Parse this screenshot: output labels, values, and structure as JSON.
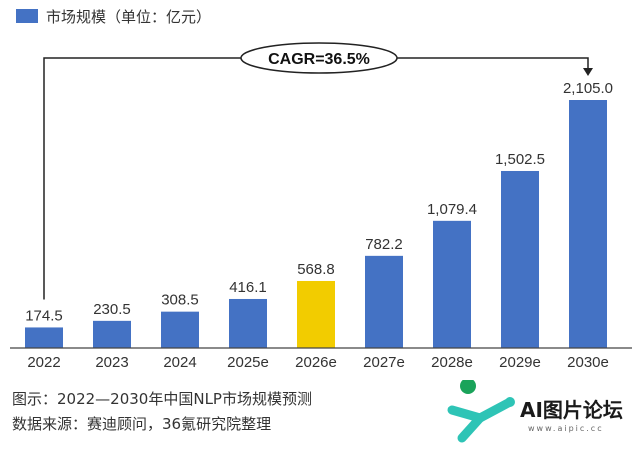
{
  "legend_label": "市场规模（单位：亿元）",
  "cagr_label": "CAGR=36.5%",
  "footnotes": {
    "figure": "图示：2022—2030年中国NLP市场规模预测",
    "source": "数据来源：赛迪顾问，36氪研究院整理"
  },
  "watermark": {
    "text": "AI图片论坛",
    "sub": "www.aipic.cc"
  },
  "colors": {
    "bar": "#4472c4",
    "highlight": "#f2cc00",
    "axis": "#444444",
    "text": "#333333"
  },
  "chart_data": {
    "type": "bar",
    "title": "",
    "xlabel": "",
    "ylabel": "",
    "categories": [
      "2022",
      "2023",
      "2024",
      "2025e",
      "2026e",
      "2027e",
      "2028e",
      "2029e",
      "2030e"
    ],
    "series": [
      {
        "name": "市场规模（单位：亿元）",
        "values": [
          174.5,
          230.5,
          308.5,
          416.1,
          568.8,
          782.2,
          1079.4,
          1502.5,
          2105.0
        ]
      }
    ],
    "value_labels": [
      "174.5",
      "230.5",
      "308.5",
      "416.1",
      "568.8",
      "782.2",
      "1,079.4",
      "1,502.5",
      "2,105.0"
    ],
    "highlight_category": "2026e",
    "ylim": [
      0,
      2105.0
    ],
    "grid": false,
    "legend_position": "top-left"
  }
}
